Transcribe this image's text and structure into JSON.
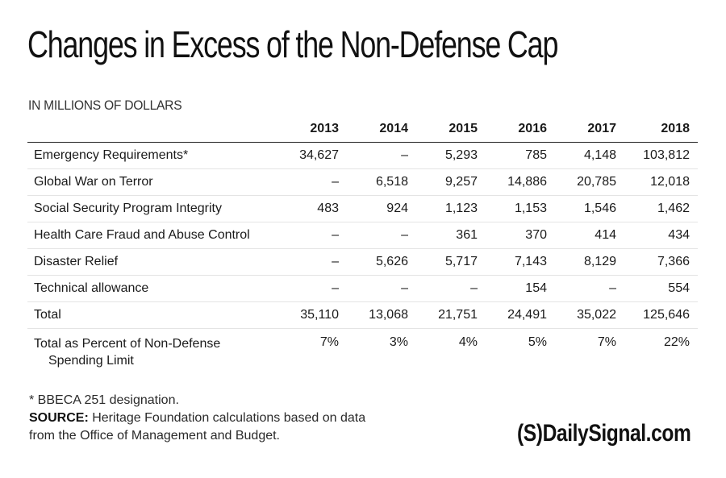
{
  "title": "Changes in Excess of the Non-Defense Cap",
  "subtitle": "IN MILLIONS OF DOLLARS",
  "chart_data": {
    "type": "table",
    "title": "Changes in Excess of the Non-Defense Cap",
    "units": "IN MILLIONS OF DOLLARS",
    "columns": [
      "",
      "2013",
      "2014",
      "2015",
      "2016",
      "2017",
      "2018"
    ],
    "rows": [
      {
        "label": "Emergency Requirements*",
        "values": [
          "34,627",
          "–",
          "5,293",
          "785",
          "4,148",
          "103,812"
        ]
      },
      {
        "label": "Global War on Terror",
        "values": [
          "–",
          "6,518",
          "9,257",
          "14,886",
          "20,785",
          "12,018"
        ]
      },
      {
        "label": "Social Security Program Integrity",
        "values": [
          "483",
          "924",
          "1,123",
          "1,153",
          "1,546",
          "1,462"
        ]
      },
      {
        "label": "Health Care Fraud and Abuse Control",
        "values": [
          "–",
          "–",
          "361",
          "370",
          "414",
          "434"
        ]
      },
      {
        "label": "Disaster Relief",
        "values": [
          "–",
          "5,626",
          "5,717",
          "7,143",
          "8,129",
          "7,366"
        ]
      },
      {
        "label": "Technical allowance",
        "values": [
          "–",
          "–",
          "–",
          "154",
          "–",
          "554"
        ]
      }
    ],
    "total": {
      "label": "Total",
      "values": [
        "35,110",
        "13,068",
        "21,751",
        "24,491",
        "35,022",
        "125,646"
      ]
    },
    "percent": {
      "label_line1": "Total as Percent of Non-Defense",
      "label_line2": "Spending Limit",
      "values": [
        "7%",
        "3%",
        "4%",
        "5%",
        "7%",
        "22%"
      ]
    }
  },
  "notes": {
    "footnote": "* BBECA 251 designation.",
    "source_label": "SOURCE:",
    "source_text": " Heritage Foundation calculations based on data",
    "source_text2": "from the Office of Management and Budget."
  },
  "logo": {
    "mark": "(S)",
    "text": "DailySignal.com"
  }
}
